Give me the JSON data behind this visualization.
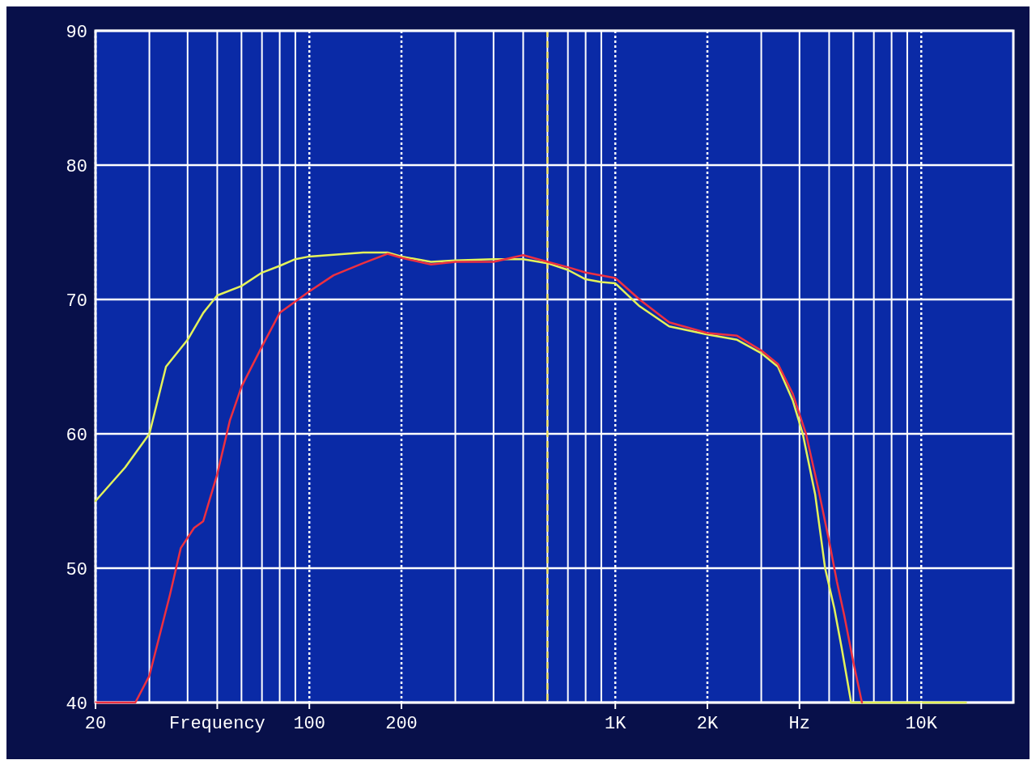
{
  "chart_data": {
    "type": "line",
    "log": "x",
    "grid": true,
    "marker": "none",
    "line_style": "solid",
    "xlim": [
      20,
      20000
    ],
    "ylim": [
      40,
      90
    ],
    "xticks": [
      20,
      {
        "value": 30,
        "label": null
      },
      {
        "value": 40,
        "label": null
      },
      {
        "value": 50,
        "label": "Frequency"
      },
      {
        "value": 60,
        "label": null
      },
      {
        "value": 70,
        "label": null
      },
      {
        "value": 80,
        "label": null
      },
      {
        "value": 90,
        "label": null
      },
      100,
      200,
      {
        "value": 300,
        "label": null
      },
      {
        "value": 400,
        "label": null
      },
      {
        "value": 500,
        "label": null
      },
      {
        "value": 600,
        "label": null
      },
      {
        "value": 700,
        "label": null
      },
      {
        "value": 800,
        "label": null
      },
      {
        "value": 900,
        "label": null
      },
      {
        "value": 1000,
        "label": "1K"
      },
      {
        "value": 2000,
        "label": "2K"
      },
      {
        "value": 3000,
        "label": null
      },
      {
        "value": 4000,
        "label": "Hz"
      },
      {
        "value": 5000,
        "label": null
      },
      {
        "value": 6000,
        "label": null
      },
      {
        "value": 7000,
        "label": null
      },
      {
        "value": 8000,
        "label": null
      },
      {
        "value": 9000,
        "label": null
      },
      {
        "value": 10000,
        "label": "10K"
      },
      {
        "value": 20000,
        "label": null
      }
    ],
    "yticks": [
      40,
      50,
      60,
      70,
      80,
      90
    ],
    "ref_lines": [
      {
        "axis": "x",
        "value": 600,
        "color": "#f0e060",
        "line_style": "dashed"
      }
    ],
    "series": [
      {
        "color": "#e4f25a",
        "x": [
          20,
          25,
          30,
          34,
          40,
          45,
          50,
          60,
          70,
          80,
          90,
          100,
          150,
          180,
          200,
          250,
          300,
          400,
          500,
          600,
          700,
          800,
          900,
          1000,
          1200,
          1500,
          2000,
          2500,
          3000,
          3400,
          3800,
          4100,
          4500,
          4850,
          5200,
          5500,
          5900,
          14000
        ],
        "values": [
          55,
          57.5,
          60,
          65,
          67,
          69,
          70.3,
          71,
          72,
          72.5,
          73,
          73.2,
          73.5,
          73.5,
          73.2,
          72.8,
          72.9,
          73,
          73,
          72.7,
          72.2,
          71.5,
          71.3,
          71.2,
          69.5,
          68,
          67.4,
          67,
          66,
          65,
          62.5,
          60,
          55.5,
          50,
          47,
          44,
          40,
          40
        ]
      },
      {
        "color": "#ee3040",
        "x": [
          20,
          27,
          30,
          35,
          38,
          42,
          45,
          50,
          55,
          60,
          70,
          80,
          100,
          120,
          150,
          180,
          200,
          250,
          300,
          400,
          500,
          600,
          700,
          800,
          1000,
          1200,
          1500,
          2000,
          2500,
          3000,
          3400,
          3800,
          4200,
          4600,
          5000,
          5300,
          5600,
          6000,
          6400
        ],
        "values": [
          40,
          40,
          42,
          48,
          51.5,
          53,
          53.5,
          57,
          61,
          63.5,
          66.5,
          69,
          70.6,
          71.8,
          72.7,
          73.4,
          73.1,
          72.6,
          72.8,
          72.8,
          73.3,
          72.8,
          72.4,
          72,
          71.6,
          70,
          68.3,
          67.5,
          67.3,
          66.2,
          65.2,
          63,
          60,
          56,
          52,
          49,
          46.5,
          43,
          40
        ]
      }
    ]
  }
}
